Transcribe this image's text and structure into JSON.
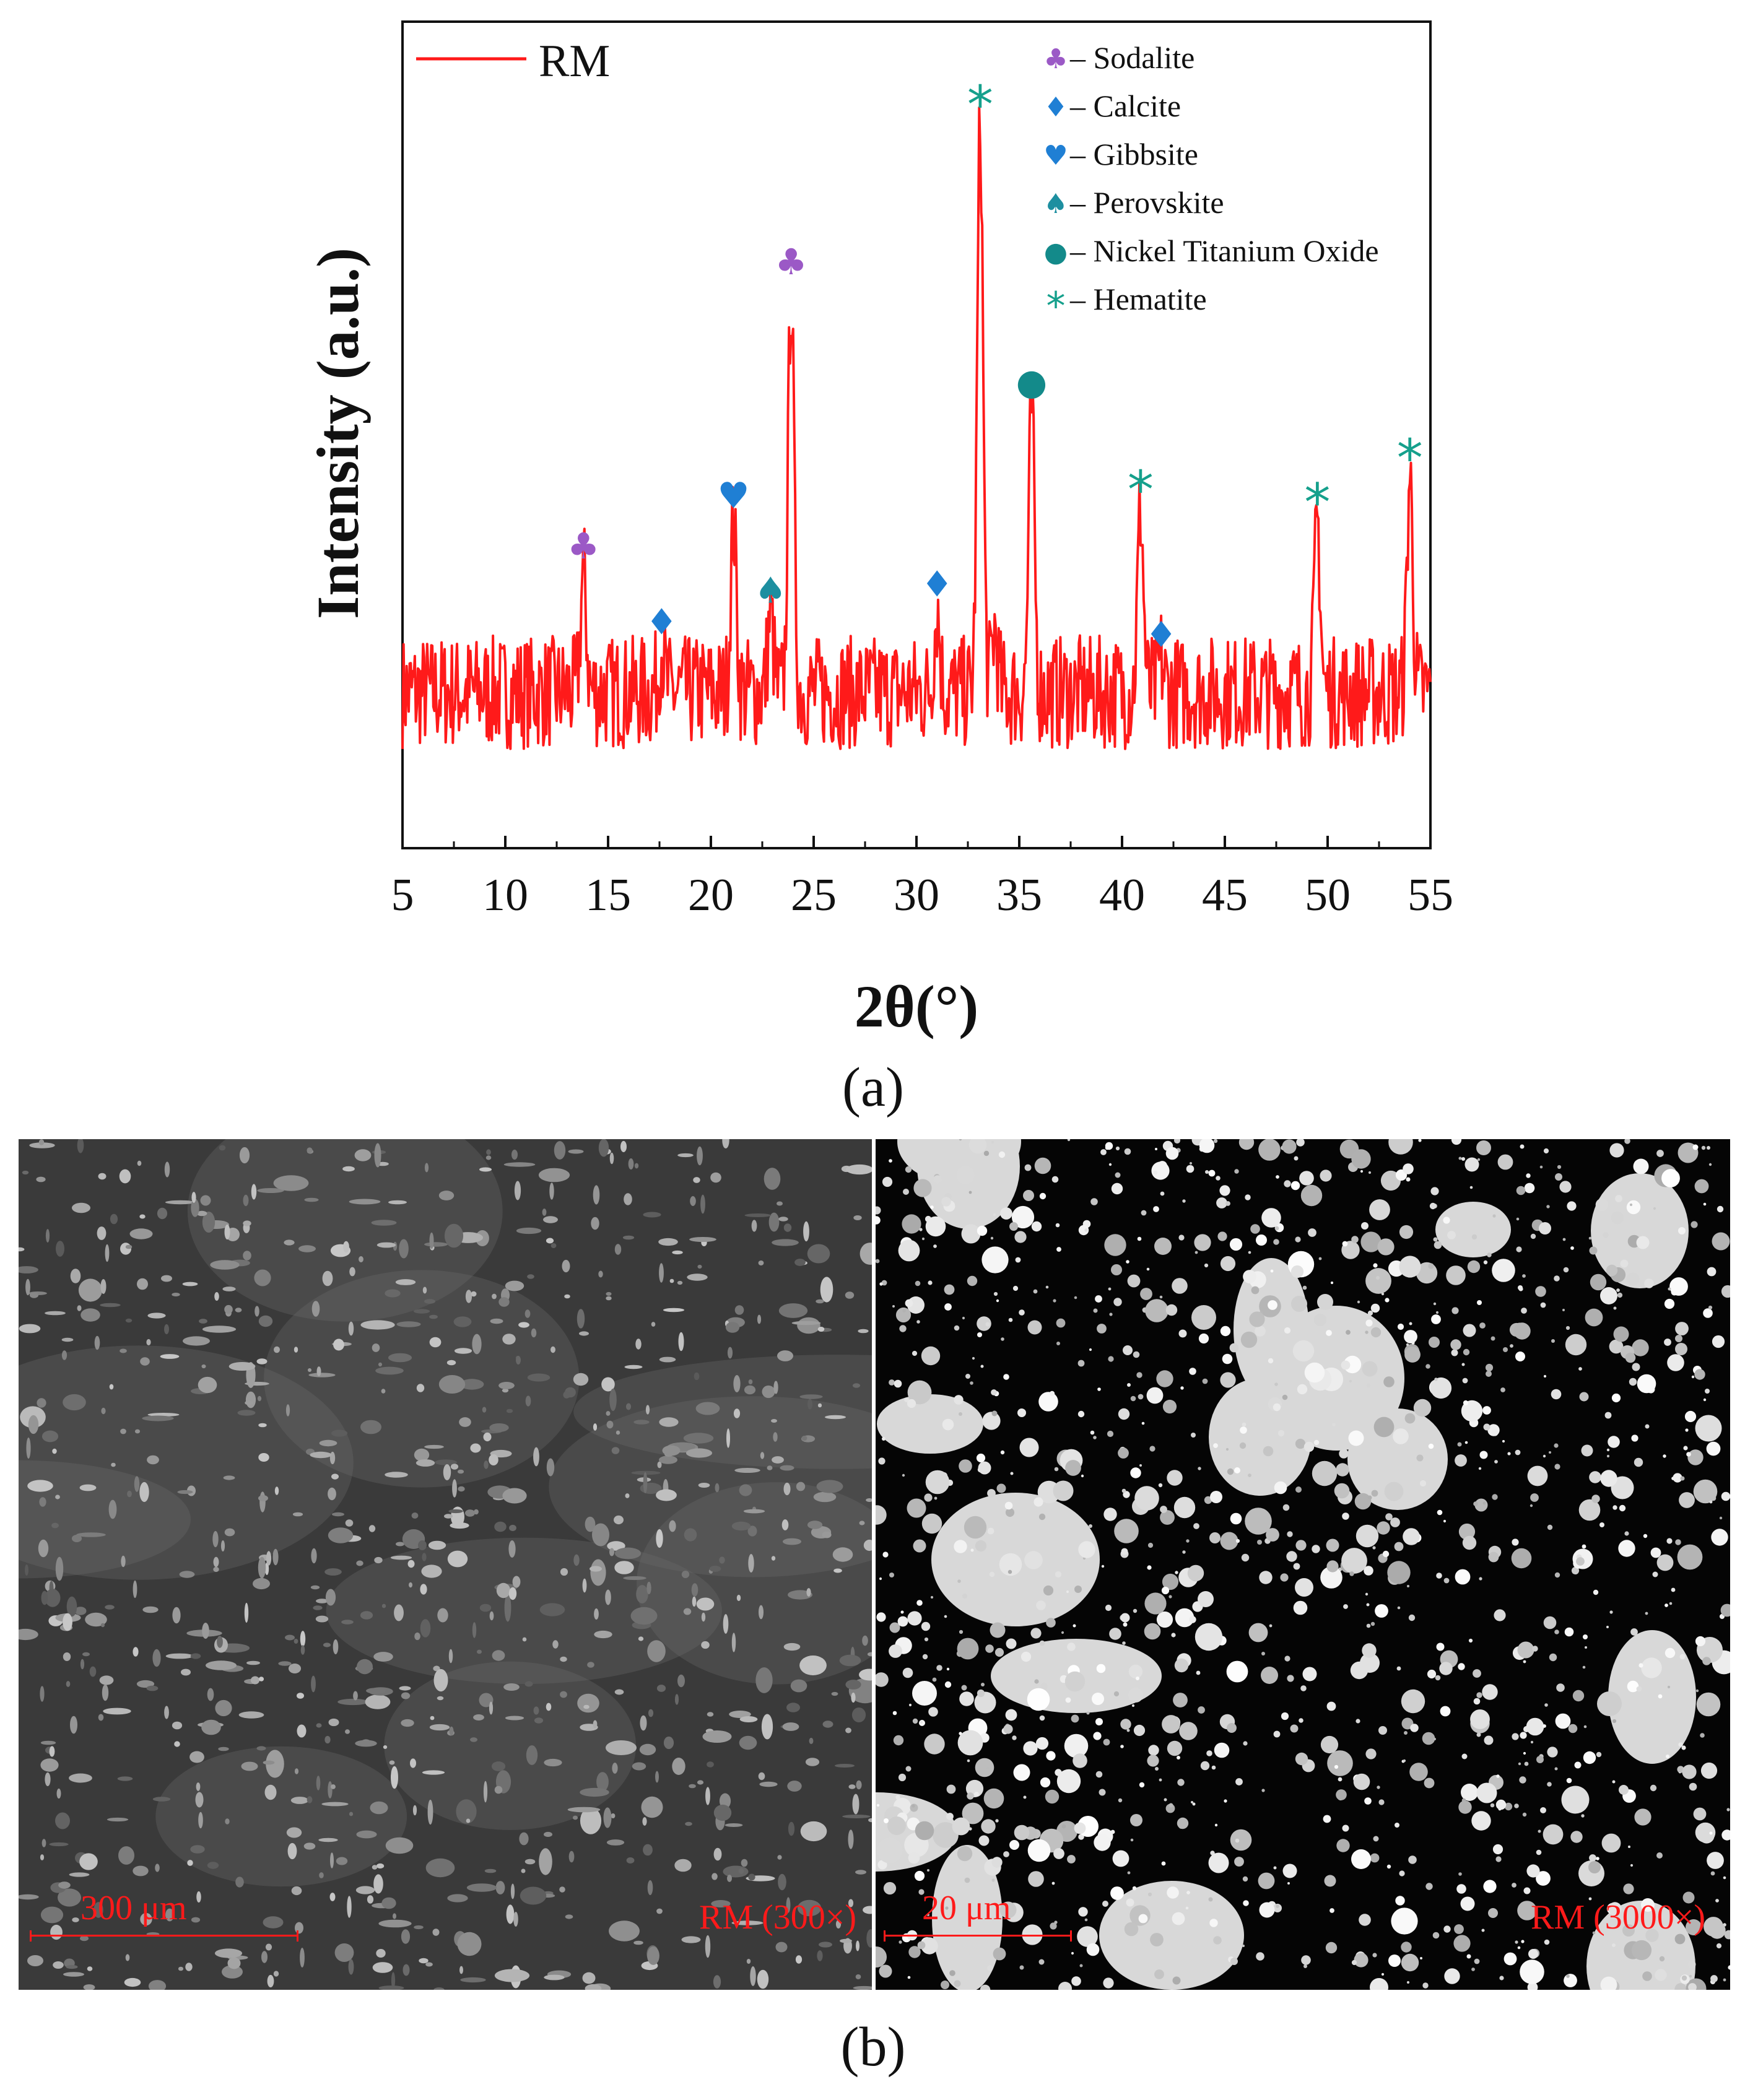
{
  "chart_data": {
    "type": "line",
    "xlabel": "2θ(°)",
    "ylabel": "Intensity (a.u.)",
    "xlim": [
      5,
      55
    ],
    "xticks": [
      "5",
      "10",
      "15",
      "20",
      "25",
      "30",
      "35",
      "40",
      "45",
      "50",
      "55"
    ],
    "yticks_shown": false,
    "legend_position": "top-left",
    "series": [
      {
        "name": "RM",
        "color": "#ff1a1a",
        "baseline": 0.1,
        "noise_amplitude": 0.09,
        "peaks": [
          {
            "x": 13.8,
            "y": 0.29
          },
          {
            "x": 17.6,
            "y": 0.17
          },
          {
            "x": 21.1,
            "y": 0.37
          },
          {
            "x": 22.9,
            "y": 0.22
          },
          {
            "x": 23.9,
            "y": 0.74
          },
          {
            "x": 31.0,
            "y": 0.23
          },
          {
            "x": 33.1,
            "y": 1.0
          },
          {
            "x": 33.8,
            "y": 0.2
          },
          {
            "x": 35.6,
            "y": 0.55
          },
          {
            "x": 40.9,
            "y": 0.39
          },
          {
            "x": 41.9,
            "y": 0.15
          },
          {
            "x": 49.5,
            "y": 0.37
          },
          {
            "x": 54.0,
            "y": 0.44
          }
        ]
      }
    ],
    "phase_legend": [
      {
        "symbol": "♣",
        "label": "– Sodalite",
        "color": "#9b59c6"
      },
      {
        "symbol": "♦",
        "label": "– Calcite",
        "color": "#1f7fd4"
      },
      {
        "symbol": "♥",
        "label": "– Gibbsite",
        "color": "#1f7fd4"
      },
      {
        "symbol": "♠",
        "label": "– Perovskite",
        "color": "#1d8fa0"
      },
      {
        "symbol": "●",
        "label": "– Nickel Titanium Oxide",
        "color": "#138a8a"
      },
      {
        "symbol": "*",
        "label": "– Hematite",
        "color": "#15a08c"
      }
    ],
    "peak_markers": [
      {
        "x": 13.8,
        "y": 0.29,
        "symbol": "♣",
        "color": "#9b59c6"
      },
      {
        "x": 17.6,
        "y": 0.17,
        "symbol": "♦",
        "color": "#1f7fd4"
      },
      {
        "x": 21.1,
        "y": 0.37,
        "symbol": "♥",
        "color": "#1f7fd4"
      },
      {
        "x": 22.9,
        "y": 0.22,
        "symbol": "♠",
        "color": "#1d8fa0"
      },
      {
        "x": 23.9,
        "y": 0.74,
        "symbol": "♣",
        "color": "#9b59c6"
      },
      {
        "x": 31.0,
        "y": 0.23,
        "symbol": "♦",
        "color": "#1f7fd4"
      },
      {
        "x": 33.1,
        "y": 1.0,
        "symbol": "*",
        "color": "#15a08c"
      },
      {
        "x": 35.6,
        "y": 0.55,
        "symbol": "●",
        "color": "#138a8a"
      },
      {
        "x": 40.9,
        "y": 0.39,
        "symbol": "*",
        "color": "#15a08c"
      },
      {
        "x": 41.9,
        "y": 0.15,
        "symbol": "♦",
        "color": "#1f7fd4"
      },
      {
        "x": 49.5,
        "y": 0.37,
        "symbol": "*",
        "color": "#15a08c"
      },
      {
        "x": 54.0,
        "y": 0.44,
        "symbol": "*",
        "color": "#15a08c"
      }
    ]
  },
  "captions": {
    "a": "(a)",
    "b": "(b)"
  },
  "sem_images": [
    {
      "scale_label": "300 μm",
      "magnification_label": "RM (300×)",
      "tone": "dark"
    },
    {
      "scale_label": "20 μm",
      "magnification_label": "RM (3000×)",
      "tone": "bright"
    }
  ]
}
